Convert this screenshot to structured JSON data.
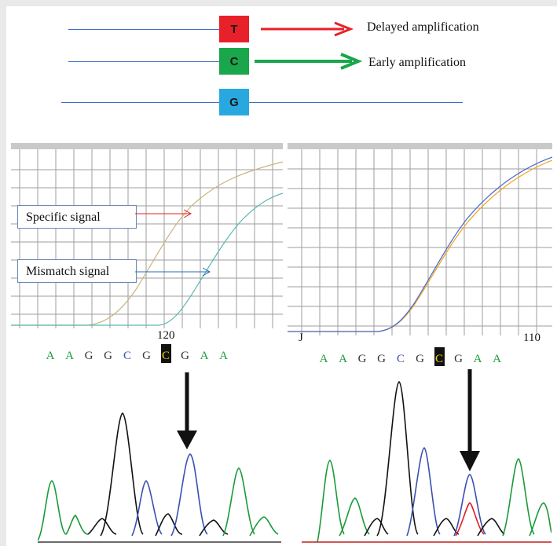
{
  "legend": {
    "rows": [
      {
        "base": "T",
        "color": "#e8202a",
        "text": "Delayed amplification"
      },
      {
        "base": "C",
        "color": "#1aa64a",
        "text": "Early amplification"
      },
      {
        "base": "G",
        "color": "#29a8e0",
        "text": ""
      }
    ]
  },
  "left_panel": {
    "callouts": {
      "specific": "Specific signal",
      "mismatch": "Mismatch signal"
    },
    "position_label": "120",
    "bases": [
      "A",
      "A",
      "G",
      "G",
      "C",
      "G",
      "C",
      "G",
      "A",
      "A"
    ],
    "highlight_index": 6
  },
  "right_panel": {
    "position_label_left": "J",
    "position_label_right": "110",
    "bases": [
      "A",
      "A",
      "G",
      "G",
      "C",
      "G",
      "C",
      "G",
      "A",
      "A"
    ],
    "highlight_index": 6
  },
  "colors": {
    "A": "#1a9a3a",
    "G": "#333333",
    "C": "#3a4fb0",
    "grid": "#9e9e9e",
    "arrow_specific": "#e02020",
    "arrow_mismatch": "#2a6ab8"
  }
}
